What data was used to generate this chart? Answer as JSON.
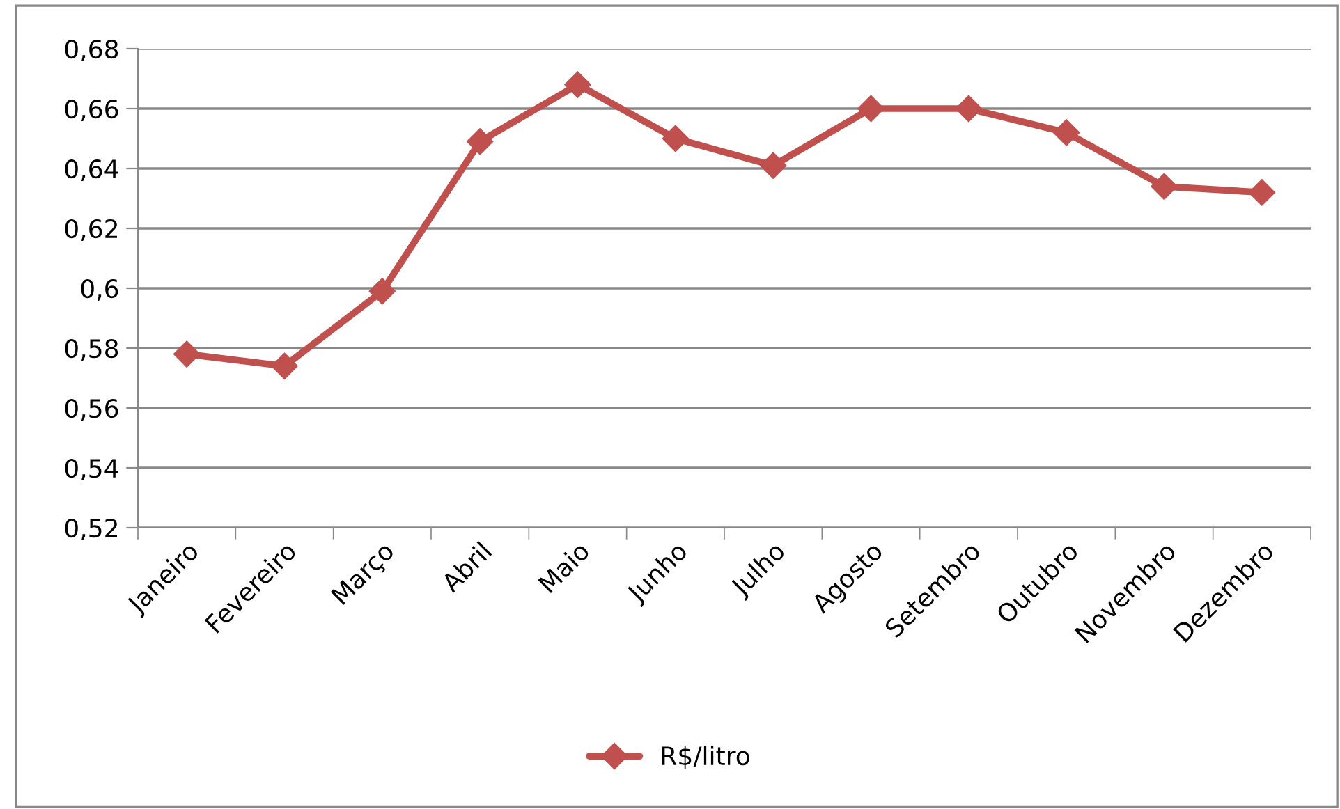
{
  "chart_data": {
    "type": "line",
    "categories": [
      "Janeiro",
      "Fevereiro",
      "Março",
      "Abril",
      "Maio",
      "Junho",
      "Julho",
      "Agosto",
      "Setembro",
      "Outubro",
      "Novembro",
      "Dezembro"
    ],
    "series": [
      {
        "name": "R$/litro",
        "color": "#c0504d",
        "values": [
          0.578,
          0.574,
          0.599,
          0.649,
          0.668,
          0.65,
          0.641,
          0.66,
          0.66,
          0.652,
          0.634,
          0.632
        ]
      }
    ],
    "ylim": [
      0.52,
      0.68
    ],
    "yticks": [
      {
        "value": 0.52,
        "label": "0,52"
      },
      {
        "value": 0.54,
        "label": "0,54"
      },
      {
        "value": 0.56,
        "label": "0,56"
      },
      {
        "value": 0.58,
        "label": "0,58"
      },
      {
        "value": 0.6,
        "label": "0,6"
      },
      {
        "value": 0.62,
        "label": "0,62"
      },
      {
        "value": 0.64,
        "label": "0,64"
      },
      {
        "value": 0.66,
        "label": "0,66"
      },
      {
        "value": 0.68,
        "label": "0,68"
      }
    ],
    "grid": "y",
    "legend": "bottom",
    "marker": "diamond",
    "line_style": "solid"
  }
}
